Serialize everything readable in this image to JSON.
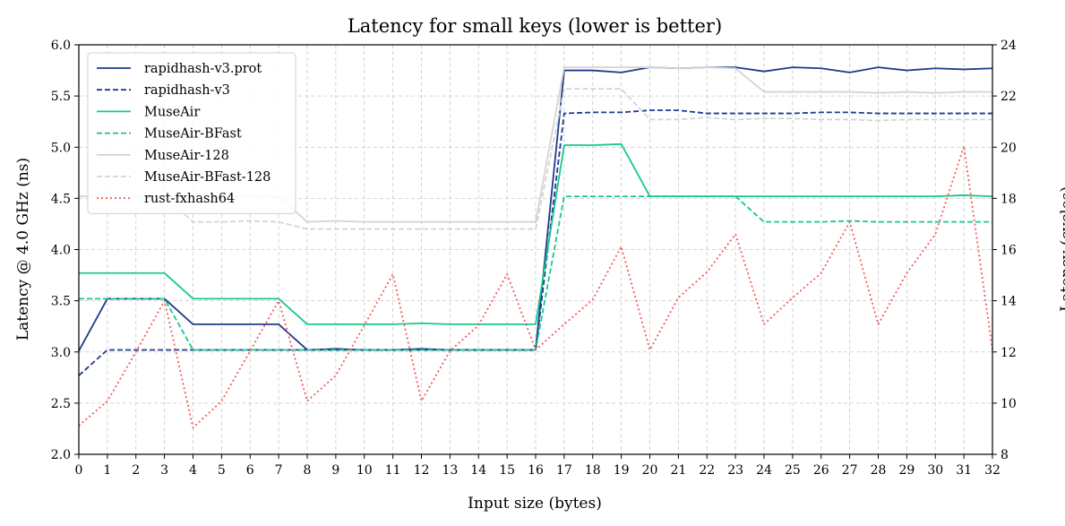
{
  "chart_data": {
    "type": "line",
    "title": "Latency for small keys (lower is better)",
    "xlabel": "Input size (bytes)",
    "ylabel": "Latency @ 4.0 GHz (ns)",
    "y2label": "Latency (cycles)",
    "xlim": [
      0,
      32
    ],
    "ylim": [
      2.0,
      6.0
    ],
    "y2lim": [
      8,
      24
    ],
    "grid": true,
    "legend_position": "top-left",
    "x": [
      0,
      1,
      2,
      3,
      4,
      5,
      6,
      7,
      8,
      9,
      10,
      11,
      12,
      13,
      14,
      15,
      16,
      17,
      18,
      19,
      20,
      21,
      22,
      23,
      24,
      25,
      26,
      27,
      28,
      29,
      30,
      31,
      32
    ],
    "x_ticks": [
      "0",
      "1",
      "2",
      "3",
      "4",
      "5",
      "6",
      "7",
      "8",
      "9",
      "10",
      "11",
      "12",
      "13",
      "14",
      "15",
      "16",
      "17",
      "18",
      "19",
      "20",
      "21",
      "22",
      "23",
      "24",
      "25",
      "26",
      "27",
      "28",
      "29",
      "30",
      "31",
      "32"
    ],
    "y_ticks": [
      "2.0",
      "2.5",
      "3.0",
      "3.5",
      "4.0",
      "4.5",
      "5.0",
      "5.5",
      "6.0"
    ],
    "y2_ticks": [
      "8",
      "10",
      "12",
      "14",
      "16",
      "18",
      "20",
      "22",
      "24"
    ],
    "series": [
      {
        "name": "rapidhash-v3.prot",
        "color": "#1f3a8a",
        "dash": "solid",
        "values": [
          3.01,
          3.52,
          3.52,
          3.52,
          3.27,
          3.27,
          3.27,
          3.27,
          3.02,
          3.03,
          3.02,
          3.02,
          3.03,
          3.02,
          3.02,
          3.02,
          3.02,
          5.75,
          5.75,
          5.73,
          5.78,
          5.77,
          5.78,
          5.78,
          5.74,
          5.78,
          5.77,
          5.73,
          5.78,
          5.75,
          5.77,
          5.76,
          5.77
        ]
      },
      {
        "name": "rapidhash-v3",
        "color": "#1f3a8a",
        "dash": "dashed",
        "values": [
          2.77,
          3.02,
          3.02,
          3.02,
          3.02,
          3.02,
          3.02,
          3.02,
          3.02,
          3.02,
          3.02,
          3.02,
          3.02,
          3.02,
          3.02,
          3.02,
          3.02,
          5.33,
          5.34,
          5.34,
          5.36,
          5.36,
          5.33,
          5.33,
          5.33,
          5.33,
          5.34,
          5.34,
          5.33,
          5.33,
          5.33,
          5.33,
          5.33
        ]
      },
      {
        "name": "MuseAir",
        "color": "#16c98c",
        "dash": "solid",
        "values": [
          3.77,
          3.77,
          3.77,
          3.77,
          3.52,
          3.52,
          3.52,
          3.52,
          3.27,
          3.27,
          3.27,
          3.27,
          3.28,
          3.27,
          3.27,
          3.27,
          3.27,
          5.02,
          5.02,
          5.03,
          4.52,
          4.52,
          4.52,
          4.52,
          4.52,
          4.52,
          4.52,
          4.52,
          4.52,
          4.52,
          4.52,
          4.53,
          4.52
        ]
      },
      {
        "name": "MuseAir-BFast",
        "color": "#16c98c",
        "dash": "dashed",
        "values": [
          3.52,
          3.52,
          3.52,
          3.52,
          3.02,
          3.02,
          3.02,
          3.02,
          3.02,
          3.02,
          3.02,
          3.02,
          3.02,
          3.02,
          3.02,
          3.02,
          3.02,
          4.52,
          4.52,
          4.52,
          4.52,
          4.52,
          4.52,
          4.52,
          4.27,
          4.27,
          4.27,
          4.28,
          4.27,
          4.27,
          4.27,
          4.27,
          4.27
        ]
      },
      {
        "name": "MuseAir-128",
        "color": "#d4d4d4",
        "dash": "solid",
        "values": [
          4.52,
          4.52,
          4.52,
          4.52,
          4.52,
          4.52,
          4.52,
          4.52,
          4.27,
          4.28,
          4.27,
          4.27,
          4.27,
          4.27,
          4.27,
          4.27,
          4.27,
          5.78,
          5.78,
          5.78,
          5.78,
          5.77,
          5.78,
          5.77,
          5.54,
          5.54,
          5.54,
          5.54,
          5.53,
          5.54,
          5.53,
          5.54,
          5.54
        ]
      },
      {
        "name": "MuseAir-BFast-128",
        "color": "#d4d4d4",
        "dash": "dashed",
        "values": [
          4.52,
          4.52,
          4.52,
          4.52,
          4.27,
          4.27,
          4.28,
          4.27,
          4.2,
          4.2,
          4.2,
          4.2,
          4.2,
          4.2,
          4.2,
          4.2,
          4.2,
          5.57,
          5.57,
          5.57,
          5.27,
          5.27,
          5.29,
          5.27,
          5.28,
          5.28,
          5.27,
          5.27,
          5.26,
          5.27,
          5.27,
          5.27,
          5.27
        ]
      },
      {
        "name": "rust-fxhash64",
        "color": "#f45b5b",
        "dash": "dotted",
        "values": [
          2.28,
          2.52,
          3.0,
          3.5,
          2.26,
          2.52,
          3.01,
          3.5,
          2.52,
          2.77,
          3.26,
          3.76,
          2.52,
          3.01,
          3.26,
          3.76,
          3.02,
          3.27,
          3.51,
          4.03,
          3.02,
          3.53,
          3.78,
          4.15,
          3.27,
          3.53,
          3.77,
          4.27,
          3.27,
          3.77,
          4.15,
          5.01,
          3.02
        ]
      }
    ]
  }
}
